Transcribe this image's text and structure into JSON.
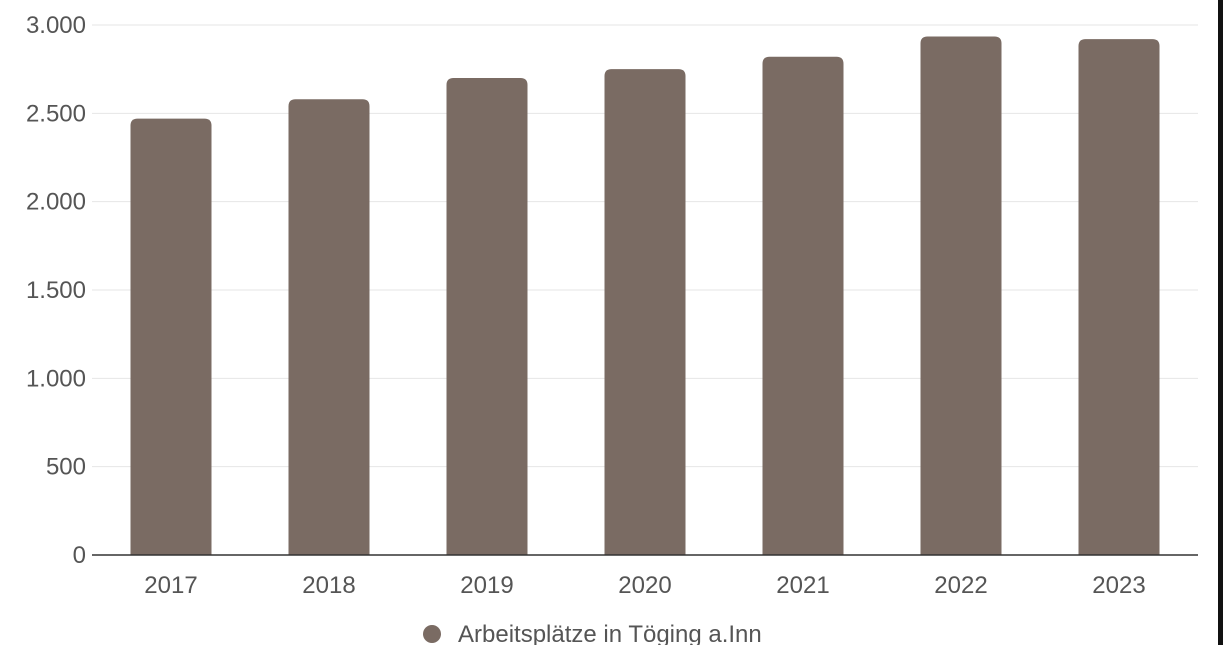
{
  "chart_data": {
    "type": "bar",
    "categories": [
      "2017",
      "2018",
      "2019",
      "2020",
      "2021",
      "2022",
      "2023"
    ],
    "series": [
      {
        "name": "Arbeitsplätze in Töging a.Inn",
        "values": [
          2470,
          2580,
          2700,
          2750,
          2820,
          2935,
          2920
        ]
      }
    ],
    "ylim": [
      0,
      3000
    ],
    "yticks": [
      0,
      500,
      1000,
      1500,
      2000,
      2500,
      3000
    ],
    "ytick_labels": [
      "0",
      "500",
      "1.000",
      "1.500",
      "2.000",
      "2.500",
      "3.000"
    ],
    "grid": true,
    "legend_position": "bottom",
    "colors": {
      "bar": "#7a6b63",
      "grid": "#e6e6e6",
      "axis": "#333333",
      "text": "#555555"
    }
  }
}
